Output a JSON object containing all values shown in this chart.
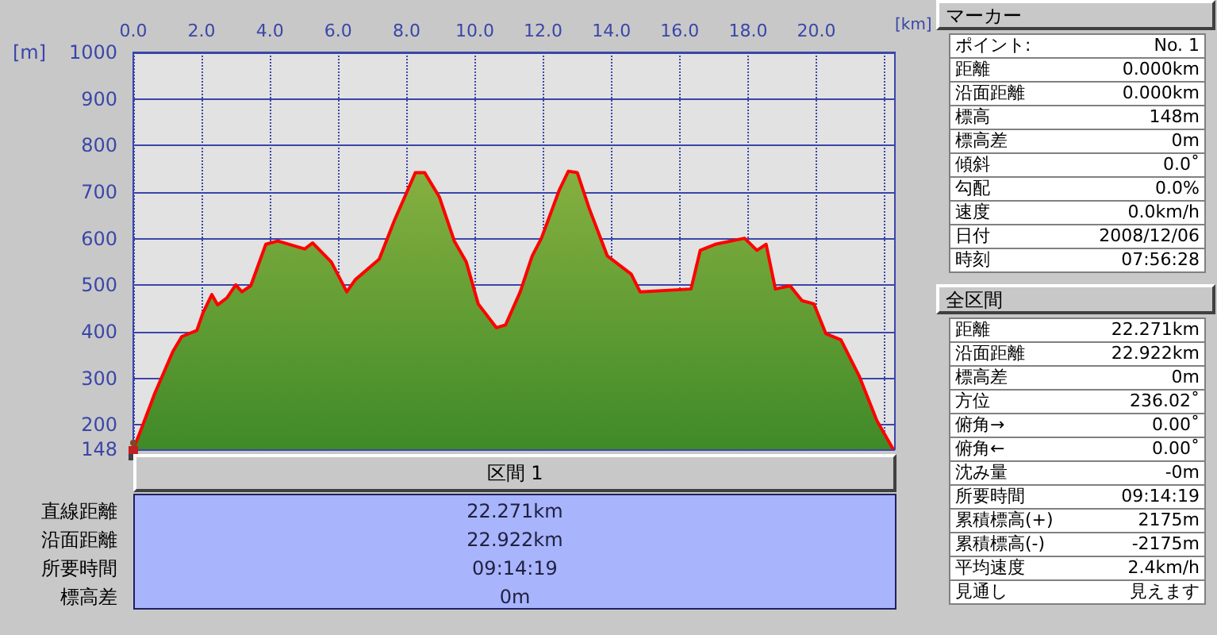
{
  "chart_data": [
    {
      "type": "area",
      "xlabel": "[km]",
      "ylabel": "[m]",
      "xlim": [
        0,
        22.3
      ],
      "ylim": [
        148,
        1000
      ],
      "xticks": [
        {
          "value": 0,
          "label": "0.0"
        },
        {
          "value": 2,
          "label": "2.0"
        },
        {
          "value": 4,
          "label": "4.0"
        },
        {
          "value": 6,
          "label": "6.0"
        },
        {
          "value": 8,
          "label": "8.0"
        },
        {
          "value": 10,
          "label": "10.0"
        },
        {
          "value": 12,
          "label": "12.0"
        },
        {
          "value": 14,
          "label": "14.0"
        },
        {
          "value": 16,
          "label": "16.0"
        },
        {
          "value": 18,
          "label": "18.0"
        },
        {
          "value": 20,
          "label": "20.0"
        },
        {
          "value": 22,
          "label": null
        }
      ],
      "yticks": [
        148,
        200,
        300,
        400,
        500,
        600,
        700,
        800,
        900,
        1000
      ],
      "grid": true,
      "marker": "none",
      "line_style": "solid",
      "x": [
        0,
        0.2,
        0.63,
        1.16,
        1.42,
        1.86,
        2.04,
        2.3,
        2.47,
        2.74,
        3.0,
        3.18,
        3.44,
        3.88,
        4.23,
        5.02,
        5.25,
        5.8,
        6.25,
        6.5,
        7.2,
        7.65,
        8.26,
        8.53,
        8.96,
        9.4,
        9.75,
        10.1,
        10.63,
        10.9,
        11.33,
        11.68,
        11.95,
        12.47,
        12.74,
        13.0,
        13.35,
        13.88,
        14.58,
        14.84,
        16.33,
        16.6,
        17.04,
        17.9,
        18.26,
        18.53,
        18.8,
        19.23,
        19.58,
        19.93,
        20.28,
        20.72,
        21.25,
        21.77,
        22.25
      ],
      "series": [
        {
          "color": "#ff0000",
          "values": [
            148,
            185,
            268,
            358,
            390,
            403,
            441,
            480,
            458,
            473,
            501,
            486,
            499,
            588,
            595,
            578,
            591,
            550,
            486,
            512,
            556,
            640,
            742,
            742,
            690,
            595,
            550,
            460,
            409,
            415,
            486,
            563,
            601,
            704,
            745,
            742,
            665,
            563,
            524,
            486,
            492,
            575,
            588,
            601,
            575,
            588,
            492,
            499,
            467,
            460,
            396,
            383,
            306,
            210,
            148
          ]
        }
      ]
    },
    {
      "type": "other",
      "title": "マーカー",
      "annotations": [
        "ポイント:",
        "No. 1",
        "距離",
        "0.000km",
        "沿面距離",
        "0.000km",
        "標高",
        "148m",
        "標高差",
        "0m",
        "傾斜",
        "0.0˚",
        "勾配",
        "0.0%",
        "速度",
        "0.0km/h",
        "日付",
        "2008/12/06",
        "時刻",
        "07:56:28"
      ]
    },
    {
      "type": "other",
      "title": "全区間",
      "annotations": [
        "距離",
        "22.271km",
        "沿面距離",
        "22.922km",
        "標高差",
        "0m",
        "方位",
        "236.02˚",
        "俯角→",
        "0.00˚",
        "俯角←",
        "0.00˚",
        "沈み量",
        "-0m",
        "所要時間",
        "09:14:19",
        "累積標高(+)",
        "2175m",
        "累積標高(-)",
        "-2175m",
        "平均速度",
        "2.4km/h",
        "見通し",
        "見えます"
      ]
    },
    {
      "type": "other",
      "title": "区間 1",
      "annotations": [
        "直線距離",
        "22.271km",
        "沿面距離",
        "22.922km",
        "所要時間",
        "09:14:19",
        "標高差",
        "0m"
      ]
    }
  ]
}
